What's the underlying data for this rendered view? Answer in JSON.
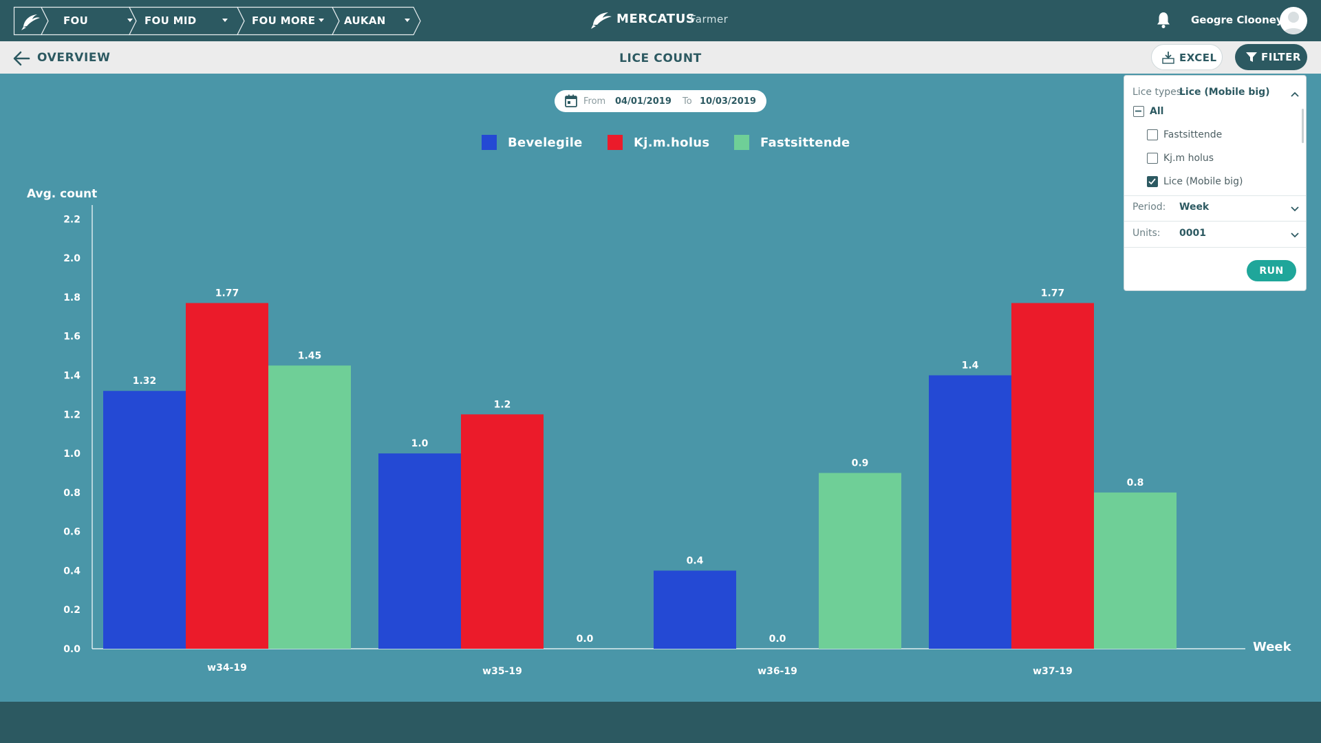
{
  "breadcrumbs": [
    {
      "label": "FOU"
    },
    {
      "label": "FOU MID"
    },
    {
      "label": "FOU MORE"
    },
    {
      "label": "AUKAN"
    }
  ],
  "brand": {
    "name": "MERCATUS",
    "sub": "Farmer"
  },
  "user": {
    "name": "Geogre Clooney"
  },
  "subbar": {
    "back_label": "OVERVIEW",
    "title": "LICE COUNT",
    "excel_label": "EXCEL",
    "filter_label": "FILTER"
  },
  "date_range": {
    "from_label": "From",
    "from_value": "04/01/2019",
    "to_label": "To",
    "to_value": "10/03/2019"
  },
  "filter_panel": {
    "lice_types_label": "Lice types:",
    "lice_types_value": "Lice (Mobile big)",
    "all_label": "All",
    "options": [
      {
        "label": "Fastsittende",
        "checked": false
      },
      {
        "label": "Kj.m holus",
        "checked": false
      },
      {
        "label": "Lice (Mobile big)",
        "checked": true
      }
    ],
    "period_label": "Period:",
    "period_value": "Week",
    "units_label": "Units:",
    "units_value": "0001",
    "run_label": "RUN"
  },
  "colors": {
    "topbar": "#2c5961",
    "background": "#4a96a8",
    "accent": "#1fa69a"
  },
  "chart_data": {
    "type": "bar",
    "title": "",
    "ylabel": "Avg. count",
    "xlabel": "Week",
    "ylim": [
      0,
      2.3
    ],
    "y_ticks": [
      "0.0",
      "0.2",
      "0.4",
      "0.6",
      "0.8",
      "1.0",
      "1.2",
      "1.4",
      "1.6",
      "1.8",
      "2.0",
      "2.2"
    ],
    "categories": [
      "w34-19",
      "w35-19",
      "w36-19",
      "w37-19"
    ],
    "series": [
      {
        "name": "Bevelegile",
        "color": "#2449d4",
        "values": [
          1.32,
          1.0,
          0.4,
          1.4
        ],
        "labels": [
          "1.32",
          "1.0",
          "0.4",
          "1.4"
        ]
      },
      {
        "name": "Kj.m.holus",
        "color": "#eb1b2a",
        "values": [
          1.77,
          1.2,
          0.0,
          1.77
        ],
        "labels": [
          "1.77",
          "1.2",
          "0.0",
          "1.77"
        ]
      },
      {
        "name": "Fastsittende",
        "color": "#6fcf97",
        "values": [
          1.45,
          0.0,
          0.9,
          0.8
        ],
        "labels": [
          "1.45",
          "0.0",
          "0.9",
          "0.8"
        ]
      }
    ],
    "grid": false,
    "legend": "top-center"
  }
}
